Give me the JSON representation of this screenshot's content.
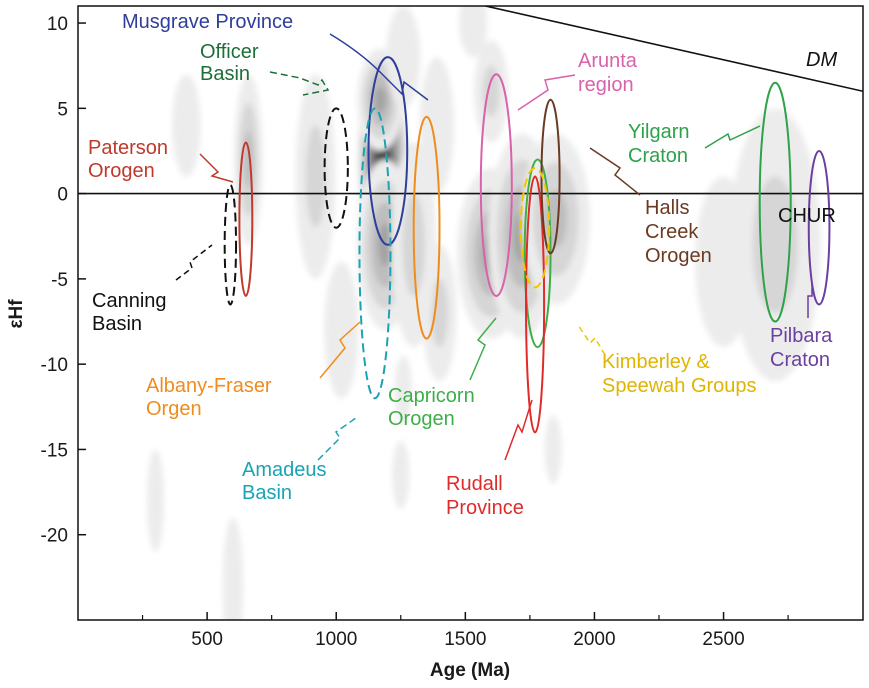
{
  "chart_data": {
    "type": "scatter",
    "title": "",
    "xlabel": "Age (Ma)",
    "ylabel": "εHf",
    "xlim": [
      0,
      3040
    ],
    "ylim": [
      -25,
      11
    ],
    "xticks": [
      500,
      1000,
      1500,
      2000,
      2500
    ],
    "yticks": [
      10,
      5,
      0,
      -5,
      -10,
      -15,
      -20
    ],
    "reference_lines": [
      {
        "name": "DM",
        "points": [
          [
            1520,
            11.2
          ],
          [
            3040,
            6.0
          ]
        ]
      },
      {
        "name": "CHUR",
        "points": [
          [
            0,
            0
          ],
          [
            3040,
            0
          ]
        ]
      }
    ],
    "density_peaks": [
      {
        "x": 1180,
        "y": 2.0,
        "sx": 45,
        "sy": 3.0,
        "w": 1.0
      },
      {
        "x": 1190,
        "y": -3.0,
        "sx": 50,
        "sy": 2.5,
        "w": 0.55
      },
      {
        "x": 1170,
        "y": 5.5,
        "sx": 40,
        "sy": 1.5,
        "w": 0.45
      },
      {
        "x": 1600,
        "y": -3.5,
        "sx": 60,
        "sy": 2.5,
        "w": 0.5
      },
      {
        "x": 1720,
        "y": -2.5,
        "sx": 60,
        "sy": 3.0,
        "w": 0.45
      },
      {
        "x": 1850,
        "y": -1.5,
        "sx": 60,
        "sy": 2.5,
        "w": 0.35
      },
      {
        "x": 1600,
        "y": 6.0,
        "sx": 30,
        "sy": 1.5,
        "w": 0.3
      },
      {
        "x": 660,
        "y": 2.0,
        "sx": 25,
        "sy": 2.5,
        "w": 0.35
      },
      {
        "x": 420,
        "y": 4.0,
        "sx": 25,
        "sy": 1.5,
        "w": 0.15
      },
      {
        "x": 920,
        "y": 1.0,
        "sx": 35,
        "sy": 3.0,
        "w": 0.2
      },
      {
        "x": 1400,
        "y": -7.0,
        "sx": 30,
        "sy": 2.0,
        "w": 0.2
      },
      {
        "x": 2700,
        "y": -3.0,
        "sx": 80,
        "sy": 4.0,
        "w": 0.25
      },
      {
        "x": 2500,
        "y": -4.0,
        "sx": 50,
        "sy": 2.5,
        "w": 0.15
      },
      {
        "x": 300,
        "y": -18.0,
        "sx": 15,
        "sy": 1.5,
        "w": 0.15
      },
      {
        "x": 600,
        "y": -23.0,
        "sx": 18,
        "sy": 2.0,
        "w": 0.18
      },
      {
        "x": 1020,
        "y": -8.0,
        "sx": 30,
        "sy": 2.0,
        "w": 0.15
      },
      {
        "x": 1260,
        "y": 8.0,
        "sx": 30,
        "sy": 1.5,
        "w": 0.18
      },
      {
        "x": 1300,
        "y": -3.0,
        "sx": 40,
        "sy": 3.0,
        "w": 0.25
      },
      {
        "x": 1390,
        "y": 4.0,
        "sx": 30,
        "sy": 2.0,
        "w": 0.15
      },
      {
        "x": 1530,
        "y": 10.0,
        "sx": 25,
        "sy": 1.0,
        "w": 0.12
      },
      {
        "x": 1250,
        "y": -16.5,
        "sx": 15,
        "sy": 1.0,
        "w": 0.1
      },
      {
        "x": 1260,
        "y": -11.5,
        "sx": 15,
        "sy": 1.0,
        "w": 0.1
      },
      {
        "x": 1840,
        "y": -15.0,
        "sx": 15,
        "sy": 1.0,
        "w": 0.08
      }
    ],
    "series": [
      {
        "name": "Musgrave Province",
        "color": "#2e3e9a",
        "dashed": false,
        "center": [
          1200,
          2.5
        ],
        "rx": 75,
        "ry": 5.5
      },
      {
        "name": "Officer Basin",
        "color": "#111111",
        "dashed": true,
        "center": [
          1000,
          1.5
        ],
        "rx": 45,
        "ry": 3.5
      },
      {
        "name": "Paterson Orogen",
        "color": "#c0392b",
        "dashed": false,
        "center": [
          650,
          -1.5
        ],
        "rx": 25,
        "ry": 4.5
      },
      {
        "name": "Canning Basin",
        "color": "#111111",
        "dashed": true,
        "center": [
          590,
          -3.0
        ],
        "rx": 22,
        "ry": 3.5
      },
      {
        "name": "Albany-Fraser Orgen",
        "color": "#f08c1e",
        "dashed": false,
        "center": [
          1350,
          -2.0
        ],
        "rx": 50,
        "ry": 6.5
      },
      {
        "name": "Amadeus Basin",
        "color": "#1aa3b5",
        "dashed": true,
        "center": [
          1150,
          -3.5
        ],
        "rx": 60,
        "ry": 8.5
      },
      {
        "name": "Capricorn Orogen",
        "color": "#3fae49",
        "dashed": false,
        "center": [
          1780,
          -3.5
        ],
        "rx": 50,
        "ry": 5.5
      },
      {
        "name": "Rudall Province",
        "color": "#e02b2b",
        "dashed": false,
        "center": [
          1770,
          -6.5
        ],
        "rx": 35,
        "ry": 7.5
      },
      {
        "name": "Arunta region",
        "color": "#d862ab",
        "dashed": false,
        "center": [
          1620,
          0.5
        ],
        "rx": 60,
        "ry": 6.5
      },
      {
        "name": "Halls Creek Orogen",
        "color": "#6b3a22",
        "dashed": false,
        "center": [
          1830,
          1.0
        ],
        "rx": 35,
        "ry": 4.5
      },
      {
        "name": "Kimberley & Speewah Groups",
        "color": "#f2c500",
        "dashed": true,
        "center": [
          1770,
          -2.0
        ],
        "rx": 55,
        "ry": 3.5
      },
      {
        "name": "Yilgarn Craton",
        "color": "#2ea24a",
        "dashed": false,
        "center": [
          2700,
          -0.5
        ],
        "rx": 60,
        "ry": 7.0
      },
      {
        "name": "Pilbara Craton",
        "color": "#6b3fa0",
        "dashed": false,
        "center": [
          2870,
          -2.0
        ],
        "rx": 40,
        "ry": 4.5
      }
    ]
  },
  "labels": {
    "musgrave": "Musgrave Province",
    "officer_1": "Officer",
    "officer_2": "Basin",
    "paterson_1": "Paterson",
    "paterson_2": "Orogen",
    "canning_1": "Canning",
    "canning_2": "Basin",
    "albany_1": "Albany-Fraser",
    "albany_2": "Orgen",
    "amadeus_1": "Amadeus",
    "amadeus_2": "Basin",
    "capricorn_1": "Capricorn",
    "capricorn_2": "Orogen",
    "rudall_1": "Rudall",
    "rudall_2": "Province",
    "arunta_1": "Arunta",
    "arunta_2": "region",
    "halls_1": "Halls",
    "halls_2": "Creek",
    "halls_3": "Orogen",
    "kimberley_1": "Kimberley &",
    "kimberley_2": "Speewah Groups",
    "yilgarn_1": "Yilgarn",
    "yilgarn_2": "Craton",
    "pilbara_1": "Pilbara",
    "pilbara_2": "Craton",
    "dm": "DM",
    "chur": "CHUR"
  }
}
